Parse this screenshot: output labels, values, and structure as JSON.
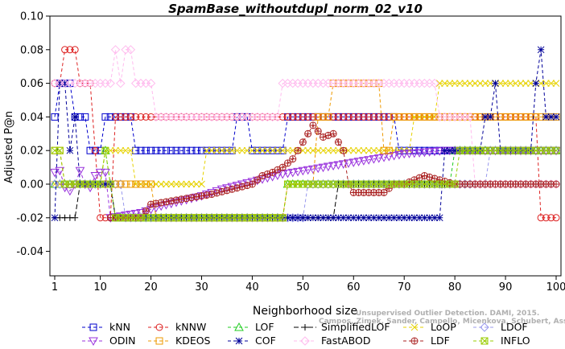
{
  "chart_data": {
    "type": "line",
    "title": "SpamBase_withoutdupl_norm_02_v10",
    "xlabel": "Neighborhood size",
    "ylabel": "Adjusted P@n",
    "xlim": [
      1,
      100
    ],
    "ylim": [
      -0.05,
      0.1
    ],
    "x_ticks": [
      1,
      10,
      20,
      30,
      40,
      50,
      60,
      70,
      80,
      90,
      100
    ],
    "y_ticks": [
      -0.04,
      -0.02,
      0.0,
      0.02,
      0.04,
      0.06,
      0.08,
      0.1
    ],
    "x_tick_labels": [
      "1",
      "10",
      "20",
      "30",
      "40",
      "50",
      "60",
      "70",
      "80",
      "90",
      "100"
    ],
    "y_tick_labels": [
      "-0.04",
      "-0.02",
      "0.00",
      "0.02",
      "0.04",
      "0.06",
      "0.08",
      "0.10"
    ],
    "grid": false,
    "legend_position": "bottom",
    "series": [
      {
        "name": "kNN",
        "color": "#0000cc",
        "marker": "square",
        "dash": "4,3",
        "segments": [
          [
            1,
            0.04
          ],
          [
            2,
            0.06
          ],
          [
            4,
            0.06
          ],
          [
            5,
            0.04
          ],
          [
            7,
            0.04
          ],
          [
            8,
            0.02
          ],
          [
            10,
            0.02
          ],
          [
            11,
            0.04
          ],
          [
            16,
            0.04
          ],
          [
            17,
            0.02
          ],
          [
            36,
            0.02
          ],
          [
            37,
            0.04
          ],
          [
            39,
            0.04
          ],
          [
            40,
            0.02
          ],
          [
            46,
            0.02
          ],
          [
            47,
            0.04
          ],
          [
            68,
            0.04
          ],
          [
            69,
            0.02
          ],
          [
            100,
            0.02
          ]
        ]
      },
      {
        "name": "kNNW",
        "color": "#dd2222",
        "marker": "circle",
        "dash": "4,3",
        "segments": [
          [
            1,
            0.06
          ],
          [
            2,
            0.06
          ],
          [
            3,
            0.08
          ],
          [
            5,
            0.08
          ],
          [
            6,
            0.06
          ],
          [
            8,
            0.06
          ],
          [
            9,
            0.02
          ],
          [
            10,
            -0.02
          ],
          [
            12,
            -0.02
          ],
          [
            13,
            0.04
          ],
          [
            96,
            0.04
          ],
          [
            97,
            -0.02
          ],
          [
            100,
            -0.02
          ]
        ]
      },
      {
        "name": "LOF",
        "color": "#22cc22",
        "marker": "triangle-up",
        "dash": "4,3",
        "segments": [
          [
            1,
            0.0
          ],
          [
            10,
            0.0
          ],
          [
            11,
            0.02
          ],
          [
            12,
            0.0
          ],
          [
            13,
            -0.02
          ],
          [
            46,
            -0.02
          ],
          [
            47,
            0.0
          ],
          [
            79,
            0.0
          ],
          [
            80,
            0.02
          ],
          [
            100,
            0.02
          ]
        ]
      },
      {
        "name": "SimplifiedLOF",
        "color": "#000000",
        "marker": "plus",
        "dash": "6,3",
        "segments": [
          [
            1,
            -0.02
          ],
          [
            5,
            -0.02
          ],
          [
            6,
            0.0
          ],
          [
            12,
            0.0
          ],
          [
            13,
            -0.02
          ],
          [
            56,
            -0.02
          ],
          [
            57,
            0.0
          ],
          [
            100,
            0.0
          ]
        ]
      },
      {
        "name": "LoOP",
        "color": "#e6d200",
        "marker": "x",
        "dash": "4,3",
        "segments": [
          [
            1,
            0.0
          ],
          [
            10,
            0.0
          ],
          [
            11,
            0.02
          ],
          [
            16,
            0.02
          ],
          [
            17,
            0.0
          ],
          [
            30,
            0.0
          ],
          [
            31,
            0.02
          ],
          [
            70,
            0.02
          ],
          [
            72,
            0.04
          ],
          [
            76,
            0.04
          ],
          [
            77,
            0.06
          ],
          [
            100,
            0.06
          ]
        ]
      },
      {
        "name": "LDOF",
        "color": "#9999ee",
        "marker": "diamond",
        "dash": "4,3",
        "segments": [
          [
            1,
            0.0
          ],
          [
            14,
            0.0
          ],
          [
            15,
            -0.02
          ],
          [
            50,
            -0.02
          ],
          [
            51,
            0.0
          ],
          [
            86,
            0.0
          ],
          [
            87,
            0.02
          ],
          [
            100,
            0.02
          ]
        ]
      },
      {
        "name": "ODIN",
        "color": "#9933dd",
        "marker": "triangle-down",
        "dash": "4,3",
        "segments": [
          [
            1,
            0.007
          ],
          [
            2,
            0.008
          ],
          [
            3,
            -0.002
          ],
          [
            4,
            -0.004
          ],
          [
            5,
            0.0
          ],
          [
            6,
            0.008
          ],
          [
            7,
            0.0
          ],
          [
            8,
            -0.002
          ],
          [
            9,
            0.005
          ],
          [
            10,
            0.007
          ],
          [
            12,
            -0.02
          ],
          [
            14,
            -0.019
          ],
          [
            18,
            -0.017
          ],
          [
            22,
            -0.013
          ],
          [
            26,
            -0.01
          ],
          [
            30,
            -0.007
          ],
          [
            34,
            -0.003
          ],
          [
            38,
            0.0
          ],
          [
            42,
            0.003
          ],
          [
            46,
            0.006
          ],
          [
            50,
            0.008
          ],
          [
            54,
            0.01
          ],
          [
            58,
            0.012
          ],
          [
            62,
            0.014
          ],
          [
            66,
            0.016
          ],
          [
            70,
            0.018
          ],
          [
            74,
            0.019
          ],
          [
            78,
            0.02
          ],
          [
            100,
            0.02
          ]
        ]
      },
      {
        "name": "KDEOS",
        "color": "#ee9900",
        "marker": "square",
        "dash": "4,3",
        "segments": [
          [
            1,
            0.02
          ],
          [
            2,
            0.02
          ],
          [
            3,
            0.0
          ],
          [
            12,
            0.0
          ],
          [
            13,
            0.0
          ],
          [
            20,
            0.0
          ],
          [
            21,
            -0.02
          ],
          [
            46,
            -0.02
          ],
          [
            47,
            0.0
          ],
          [
            52,
            0.0
          ],
          [
            53,
            0.04
          ],
          [
            55,
            0.04
          ],
          [
            56,
            0.06
          ],
          [
            65,
            0.06
          ],
          [
            66,
            0.02
          ],
          [
            67,
            0.02
          ],
          [
            68,
            0.04
          ],
          [
            100,
            0.04
          ]
        ]
      },
      {
        "name": "COF",
        "color": "#000099",
        "marker": "asterisk",
        "dash": "4,3",
        "segments": [
          [
            1,
            -0.02
          ],
          [
            2,
            0.06
          ],
          [
            3,
            0.06
          ],
          [
            4,
            0.02
          ],
          [
            5,
            0.04
          ],
          [
            6,
            0.0
          ],
          [
            13,
            -0.02
          ],
          [
            77,
            -0.02
          ],
          [
            78,
            0.02
          ],
          [
            85,
            0.02
          ],
          [
            86,
            0.04
          ],
          [
            88,
            0.06
          ],
          [
            89,
            0.02
          ],
          [
            96,
            0.06
          ],
          [
            97,
            0.08
          ],
          [
            98,
            0.04
          ],
          [
            100,
            0.04
          ]
        ]
      },
      {
        "name": "FastABOD",
        "color": "#ffbbee",
        "marker": "diamond",
        "dash": "4,3",
        "segments": [
          [
            1,
            0.06
          ],
          [
            10,
            0.06
          ],
          [
            12,
            0.06
          ],
          [
            13,
            0.08
          ],
          [
            14,
            0.06
          ],
          [
            15,
            0.08
          ],
          [
            16,
            0.08
          ],
          [
            17,
            0.06
          ],
          [
            20,
            0.06
          ],
          [
            21,
            0.04
          ],
          [
            45,
            0.04
          ],
          [
            46,
            0.06
          ],
          [
            76,
            0.06
          ],
          [
            77,
            0.04
          ],
          [
            83,
            0.04
          ],
          [
            84,
            0.0
          ],
          [
            100,
            0.0
          ]
        ]
      },
      {
        "name": "LDF",
        "color": "#aa2222",
        "marker": "circle-plus",
        "dash": "4,3",
        "segments": [
          [
            12,
            -0.02
          ],
          [
            18,
            -0.02
          ],
          [
            20,
            -0.012
          ],
          [
            24,
            -0.01
          ],
          [
            28,
            -0.008
          ],
          [
            32,
            -0.006
          ],
          [
            36,
            -0.003
          ],
          [
            40,
            0.0
          ],
          [
            42,
            0.005
          ],
          [
            44,
            0.007
          ],
          [
            46,
            0.01
          ],
          [
            48,
            0.015
          ],
          [
            50,
            0.025
          ],
          [
            52,
            0.035
          ],
          [
            54,
            0.028
          ],
          [
            56,
            0.03
          ],
          [
            57,
            0.025
          ],
          [
            58,
            0.02
          ],
          [
            59,
            0.0
          ],
          [
            60,
            -0.005
          ],
          [
            64,
            -0.005
          ],
          [
            66,
            -0.005
          ],
          [
            68,
            0.0
          ],
          [
            70,
            0.0
          ],
          [
            74,
            0.005
          ],
          [
            80,
            0.0
          ],
          [
            100,
            0.0
          ]
        ]
      },
      {
        "name": "INFLO",
        "color": "#99cc00",
        "marker": "square-x",
        "dash": "4,3",
        "segments": [
          [
            1,
            0.02
          ],
          [
            2,
            0.02
          ],
          [
            3,
            0.0
          ],
          [
            10,
            0.0
          ],
          [
            11,
            0.02
          ],
          [
            12,
            0.0
          ],
          [
            13,
            -0.02
          ],
          [
            46,
            -0.02
          ],
          [
            47,
            0.0
          ],
          [
            80,
            0.0
          ],
          [
            81,
            0.02
          ],
          [
            100,
            0.02
          ]
        ]
      }
    ]
  },
  "watermark": {
    "line1": "Unsupervised Outlier Detection. DAMI, 2015.",
    "line2": "Campos, Zimek, Sander, Campello, Micenkova, Schubert, Assent, Houle"
  }
}
